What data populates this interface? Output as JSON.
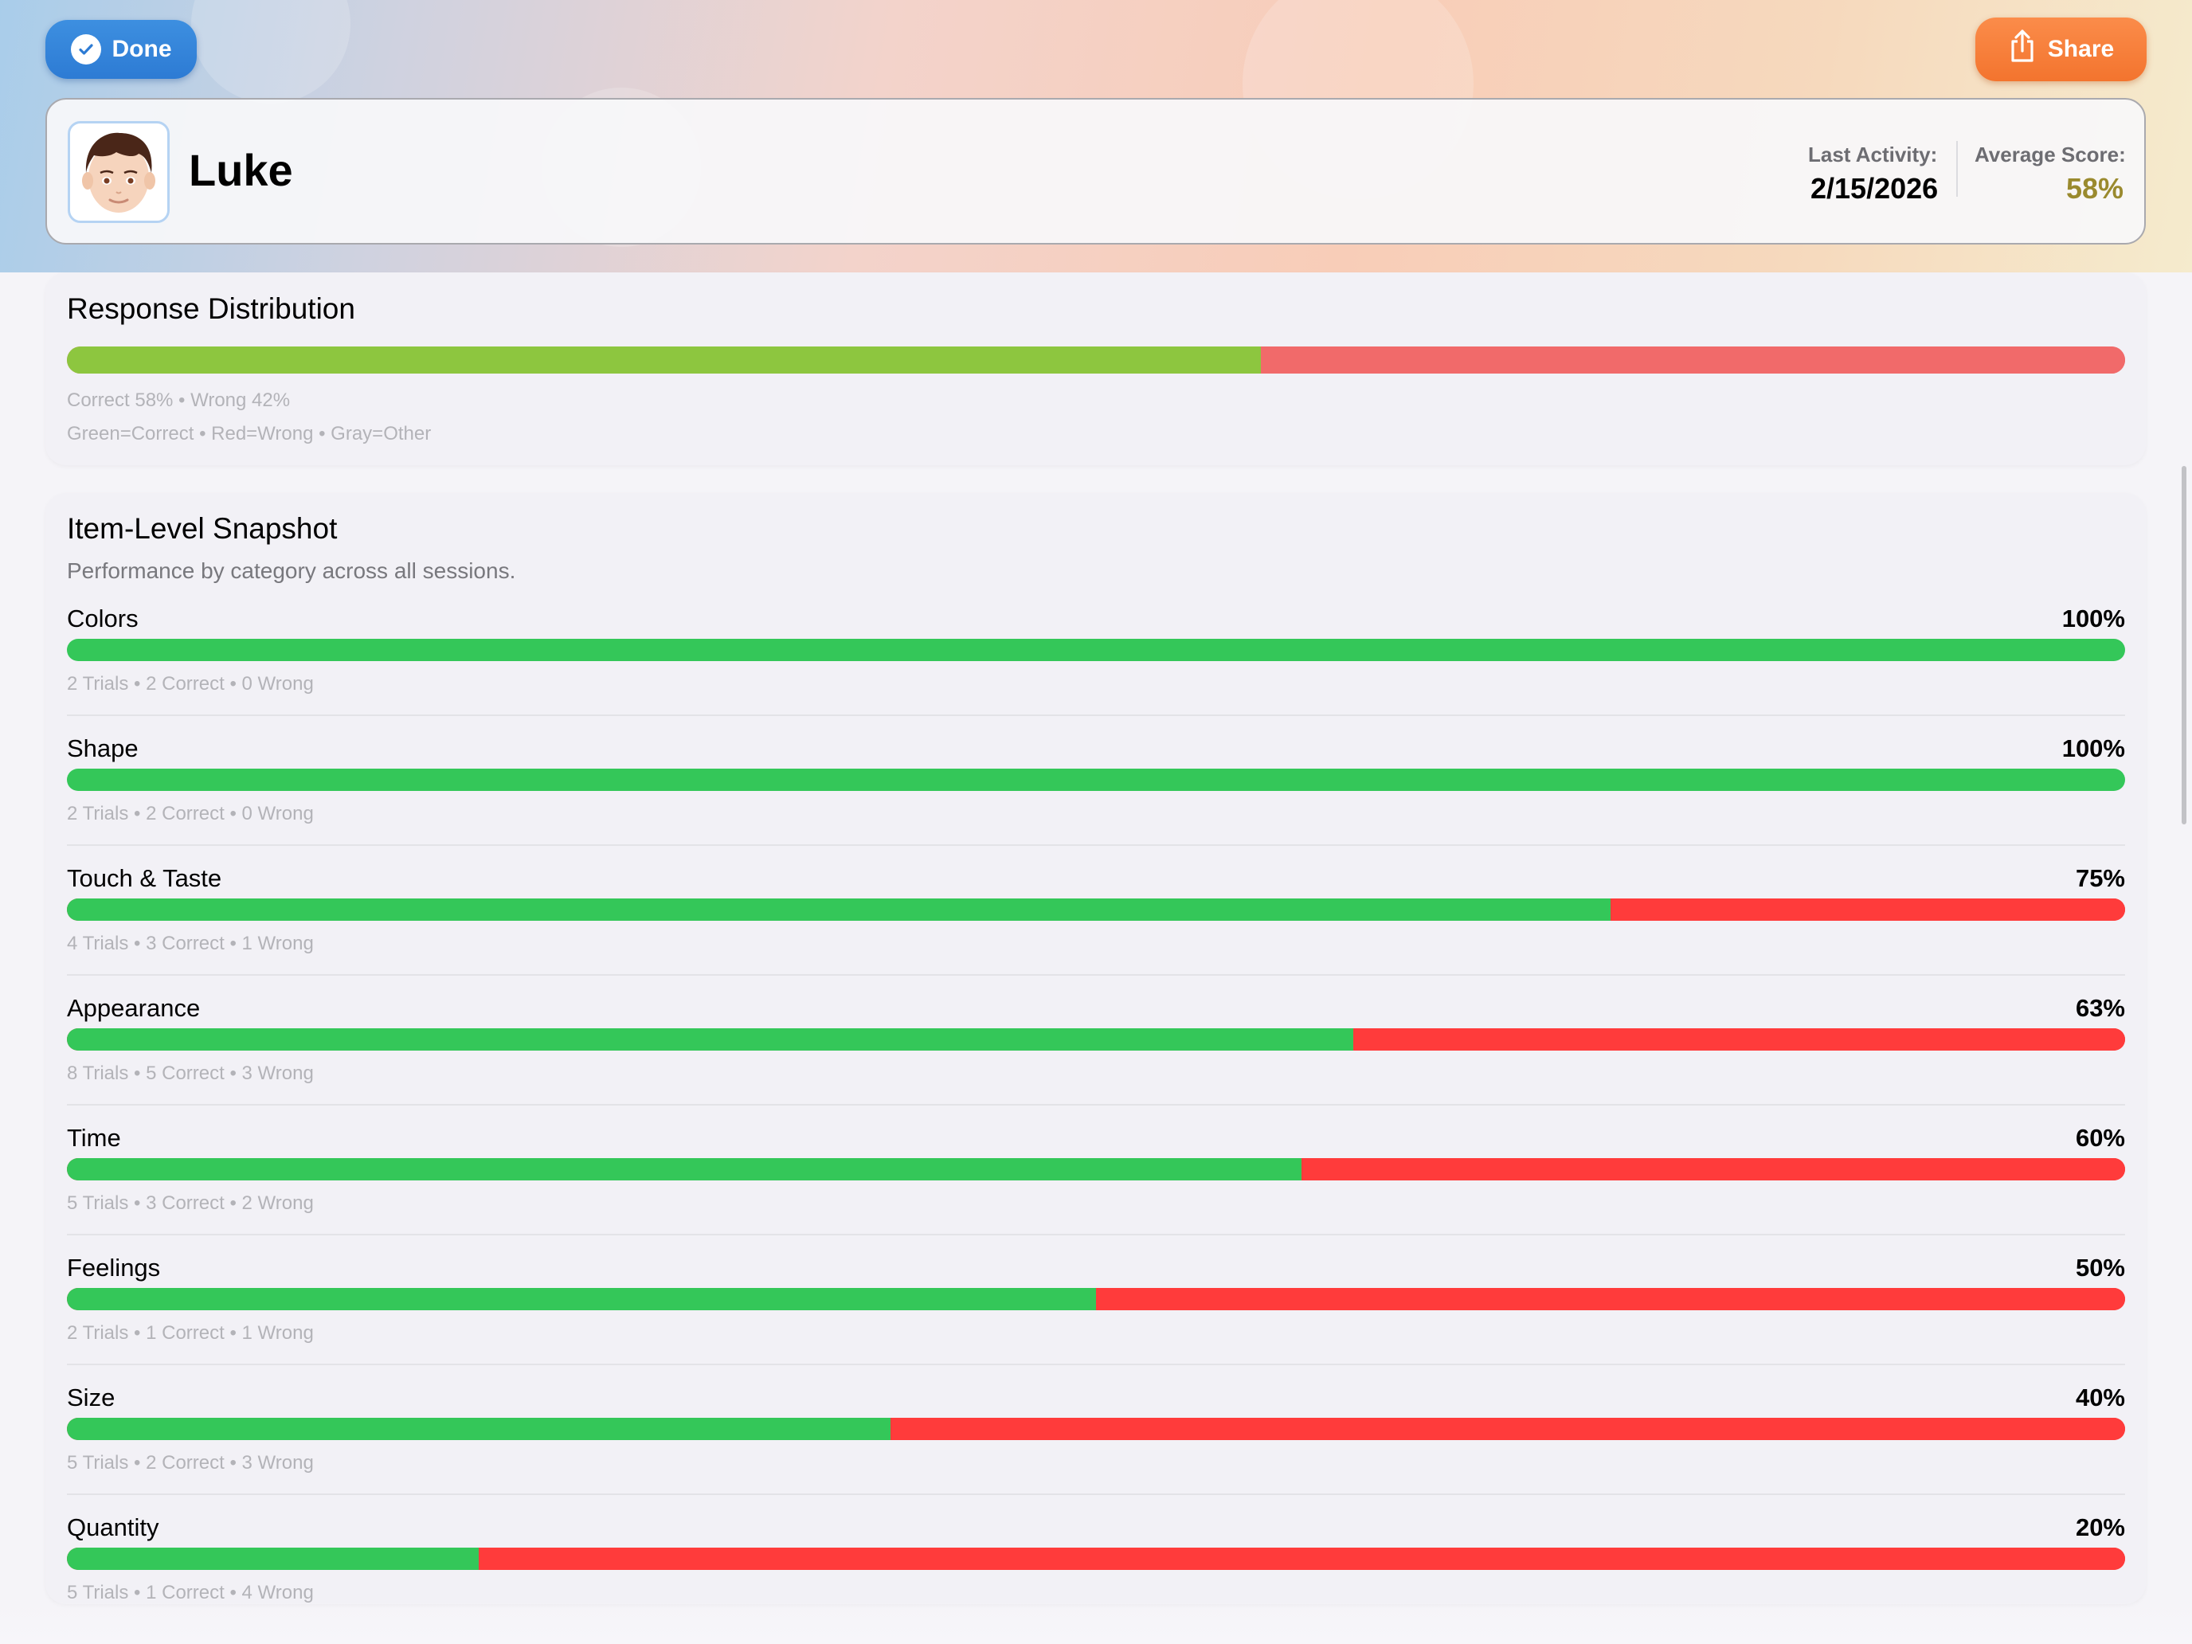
{
  "toolbar": {
    "done_label": "Done",
    "share_label": "Share"
  },
  "profile": {
    "name": "Luke",
    "last_activity_label": "Last Activity:",
    "last_activity_value": "2/15/2026",
    "average_score_label": "Average Score:",
    "average_score_value": "58%"
  },
  "response_distribution": {
    "title": "Response Distribution",
    "correct_fraction": 0.58,
    "summary": "Correct 58% • Wrong 42%",
    "legend": "Green=Correct • Red=Wrong • Gray=Other"
  },
  "snapshot": {
    "title": "Item-Level Snapshot",
    "subtitle": "Performance by category across all sessions.",
    "items": [
      {
        "category": "Colors",
        "percent": "100%",
        "fraction": 1.0,
        "stats": "2 Trials • 2 Correct • 0 Wrong"
      },
      {
        "category": "Shape",
        "percent": "100%",
        "fraction": 1.0,
        "stats": "2 Trials • 2 Correct • 0 Wrong"
      },
      {
        "category": "Touch & Taste",
        "percent": "75%",
        "fraction": 0.75,
        "stats": "4 Trials • 3 Correct • 1 Wrong"
      },
      {
        "category": "Appearance",
        "percent": "63%",
        "fraction": 0.625,
        "stats": "8 Trials • 5 Correct • 3 Wrong"
      },
      {
        "category": "Time",
        "percent": "60%",
        "fraction": 0.6,
        "stats": "5 Trials • 3 Correct • 2 Wrong"
      },
      {
        "category": "Feelings",
        "percent": "50%",
        "fraction": 0.5,
        "stats": "2 Trials • 1 Correct • 1 Wrong"
      },
      {
        "category": "Size",
        "percent": "40%",
        "fraction": 0.4,
        "stats": "5 Trials • 2 Correct • 3 Wrong"
      },
      {
        "category": "Quantity",
        "percent": "20%",
        "fraction": 0.2,
        "stats": "5 Trials • 1 Correct • 4 Wrong"
      }
    ]
  },
  "colors": {
    "correct": "#34c759",
    "wrong": "#ff3b3b",
    "average_score": "#9a8a2e",
    "done_button": "#2d7bd4",
    "share_button": "#f3742e"
  },
  "icons": {
    "done": "checkmark-circle-icon",
    "share": "share-icon",
    "avatar": "boy-avatar"
  }
}
